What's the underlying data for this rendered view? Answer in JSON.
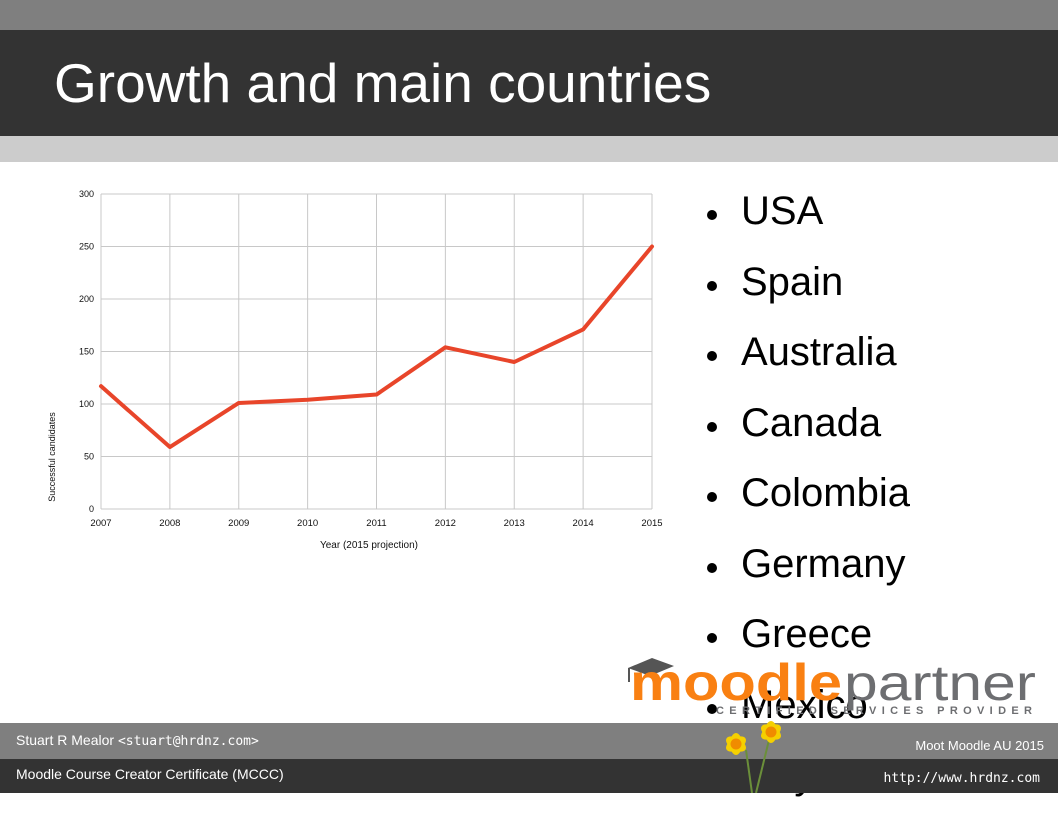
{
  "slide": {
    "title": "Growth and main countries"
  },
  "countries": [
    "USA",
    "Spain",
    "Australia",
    "Canada",
    "Colombia",
    "Germany",
    "Greece",
    "Mexico",
    "Italy"
  ],
  "logo": {
    "text_orange": "moodle",
    "text_grey": "partner",
    "tagline": "CERTIFIED SERVICES PROVIDER"
  },
  "footer": {
    "author_name": "Stuart R Mealor",
    "author_email": "<stuart@hrdnz.com>",
    "event": "Moot Moodle AU 2015",
    "certificate": "Moodle Course Creator Certificate (MCCC)",
    "url": "http://www.hrdnz.com"
  },
  "colors": {
    "title_bar": "#333333",
    "top_strip": "#7f7f7f",
    "sub_strip": "#cccccc",
    "line": "#e8452a",
    "moodle_orange": "#f98012",
    "partner_grey": "#6d6e71"
  },
  "chart_data": {
    "type": "line",
    "categories": [
      "2007",
      "2008",
      "2009",
      "2010",
      "2011",
      "2012",
      "2013",
      "2014",
      "2015"
    ],
    "values": [
      117,
      59,
      101,
      104,
      109,
      154,
      140,
      171,
      250
    ],
    "yticks": [
      0,
      50,
      100,
      150,
      200,
      250,
      300
    ],
    "ylim": [
      0,
      300
    ],
    "xlabel": "Year (2015 projection)",
    "ylabel": "Successful candidates",
    "grid": true
  }
}
